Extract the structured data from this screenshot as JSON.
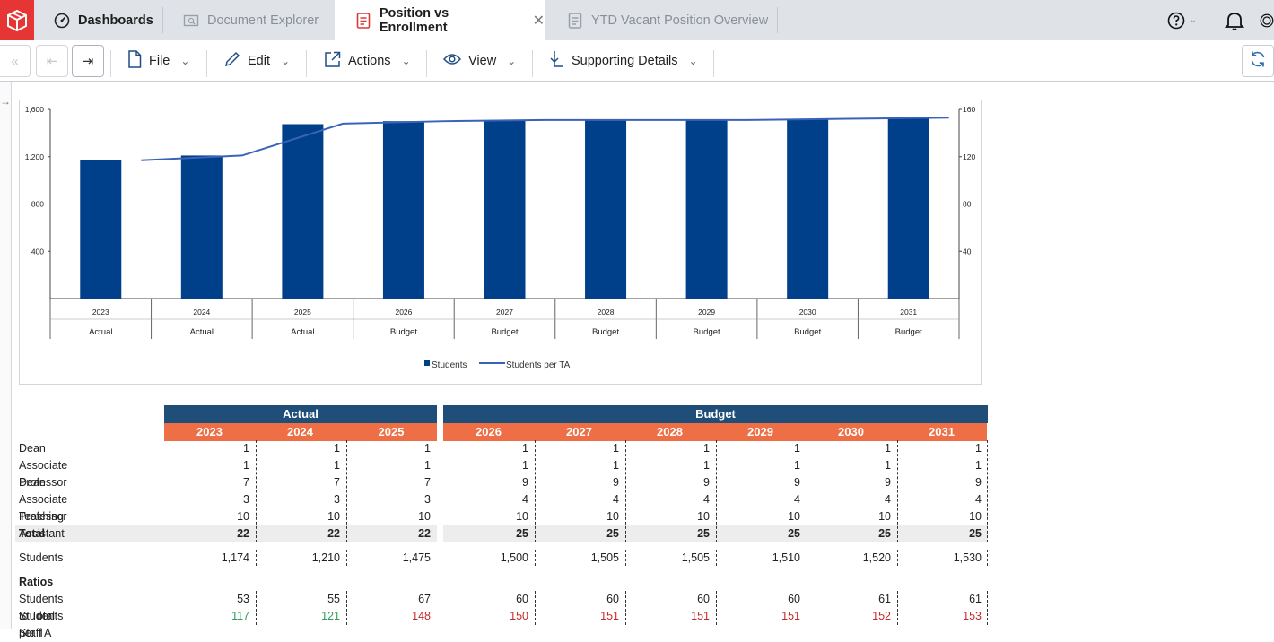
{
  "tabs": [
    {
      "label": "Dashboards",
      "icon": "gauge-icon"
    },
    {
      "label": "Document Explorer",
      "icon": "folder-search-icon"
    },
    {
      "label": "Position vs Enrollment",
      "icon": "document-icon",
      "close": "✕"
    },
    {
      "label": "YTD Vacant Position Overview",
      "icon": "document-icon"
    }
  ],
  "header_icons": [
    "help-icon",
    "bell-icon",
    "user-icon"
  ],
  "toolbar": {
    "file": "File",
    "edit": "Edit",
    "actions": "Actions",
    "view": "View",
    "supporting": "Supporting Details"
  },
  "colors": {
    "bar": "#003f8a",
    "line": "#3a63b8",
    "group_header": "#1f4e79",
    "year_header": "#ee6e45",
    "good": "#2e9c5c",
    "bad": "#c62828"
  },
  "chart_data": {
    "type": "bar",
    "categories": [
      "2023",
      "2024",
      "2025",
      "2026",
      "2027",
      "2028",
      "2029",
      "2030",
      "2031"
    ],
    "category_groups": [
      "Actual",
      "Actual",
      "Actual",
      "Budget",
      "Budget",
      "Budget",
      "Budget",
      "Budget",
      "Budget"
    ],
    "series": [
      {
        "name": "Students",
        "type": "bar",
        "axis": "left",
        "values": [
          1174,
          1210,
          1475,
          1500,
          1505,
          1505,
          1510,
          1520,
          1530
        ]
      },
      {
        "name": "Students per TA",
        "type": "line",
        "axis": "right",
        "values": [
          117,
          121,
          148,
          150,
          151,
          151,
          151,
          152,
          153
        ]
      }
    ],
    "left_ticks": [
      "1,600",
      "1,200",
      "800",
      "400"
    ],
    "right_ticks": [
      "160",
      "120",
      "80",
      "40"
    ],
    "ylim_left": [
      0,
      1600
    ],
    "ylim_right": [
      0,
      160
    ],
    "legend_position": "bottom-center"
  },
  "table": {
    "groups": [
      "Actual",
      "Budget"
    ],
    "years": [
      "2023",
      "2024",
      "2025",
      "2026",
      "2027",
      "2028",
      "2029",
      "2030",
      "2031"
    ],
    "rows": [
      {
        "label": "Dean",
        "values": [
          "1",
          "1",
          "1",
          "1",
          "1",
          "1",
          "1",
          "1",
          "1"
        ]
      },
      {
        "label": "Associate Dean",
        "values": [
          "1",
          "1",
          "1",
          "1",
          "1",
          "1",
          "1",
          "1",
          "1"
        ]
      },
      {
        "label": "Professor",
        "values": [
          "7",
          "7",
          "7",
          "9",
          "9",
          "9",
          "9",
          "9",
          "9"
        ]
      },
      {
        "label": "Associate Professor",
        "values": [
          "3",
          "3",
          "3",
          "4",
          "4",
          "4",
          "4",
          "4",
          "4"
        ]
      },
      {
        "label": "Teaching Assistant",
        "values": [
          "10",
          "10",
          "10",
          "10",
          "10",
          "10",
          "10",
          "10",
          "10"
        ]
      }
    ],
    "total": {
      "label": "Total",
      "values": [
        "22",
        "22",
        "22",
        "25",
        "25",
        "25",
        "25",
        "25",
        "25"
      ]
    },
    "students": {
      "label": "Students",
      "values": [
        "1,174",
        "1,210",
        "1,475",
        "1,500",
        "1,505",
        "1,505",
        "1,510",
        "1,520",
        "1,530"
      ]
    },
    "ratios_heading": "Ratios",
    "staff_ratio": {
      "label": "Students to Total Staff",
      "values": [
        "53",
        "55",
        "67",
        "60",
        "60",
        "60",
        "60",
        "61",
        "61"
      ]
    },
    "ta_ratio": {
      "label": "Students per TA",
      "values": [
        "117",
        "121",
        "148",
        "150",
        "151",
        "151",
        "151",
        "152",
        "153"
      ],
      "status": [
        "good",
        "good",
        "bad",
        "bad",
        "bad",
        "bad",
        "bad",
        "bad",
        "bad"
      ]
    }
  }
}
